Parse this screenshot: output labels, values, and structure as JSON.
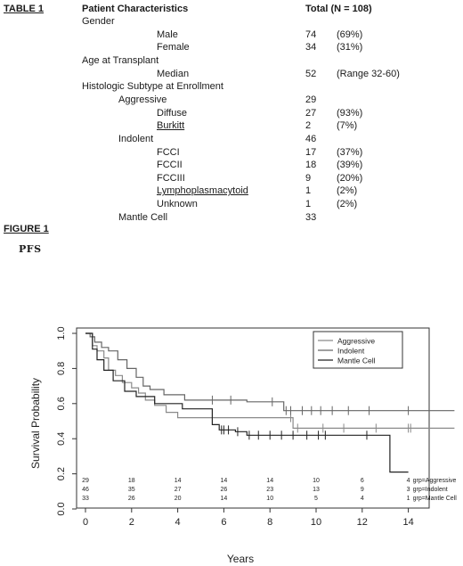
{
  "table": {
    "label": "TABLE 1",
    "header_char": "Patient Characteristics",
    "header_total": "Total (N = 108)",
    "rows": [
      {
        "label": "Gender",
        "indent": 0,
        "value": "",
        "pct": ""
      },
      {
        "label": "Male",
        "indent": 2,
        "value": "74",
        "pct": "(69%)"
      },
      {
        "label": "Female",
        "indent": 2,
        "value": "34",
        "pct": "(31%)"
      },
      {
        "label": "Age at Transplant",
        "indent": 0,
        "value": "",
        "pct": ""
      },
      {
        "label": "Median",
        "indent": 2,
        "value": "52",
        "pct": "(Range  32-60)"
      },
      {
        "label": "Histologic Subtype at Enrollment",
        "indent": 0,
        "value": "",
        "pct": ""
      },
      {
        "label": "Aggressive",
        "indent": 1,
        "value": "29",
        "pct": ""
      },
      {
        "label": "Diffuse",
        "indent": 2,
        "value": "27",
        "pct": "(93%)"
      },
      {
        "label": "Burkitt",
        "indent": 2,
        "value": "2",
        "pct": "(7%)",
        "underline": true
      },
      {
        "label": "Indolent",
        "indent": 1,
        "value": "46",
        "pct": ""
      },
      {
        "label": "FCCI",
        "indent": 2,
        "value": "17",
        "pct": "(37%)"
      },
      {
        "label": "FCCII",
        "indent": 2,
        "value": "18",
        "pct": "(39%)"
      },
      {
        "label": "FCCIII",
        "indent": 2,
        "value": "9",
        "pct": "(20%)"
      },
      {
        "label": "Lymphoplasmacytoid",
        "indent": 2,
        "value": "1",
        "pct": "(2%)",
        "underline": true
      },
      {
        "label": "Unknown",
        "indent": 2,
        "value": "1",
        "pct": "(2%)"
      },
      {
        "label": "Mantle Cell",
        "indent": 1,
        "value": "33",
        "pct": ""
      }
    ]
  },
  "figure": {
    "label": "FIGURE 1",
    "subtitle": "PFS"
  },
  "chart_data": {
    "type": "line",
    "xlabel": "Years",
    "ylabel": "Survival Probability",
    "xlim": [
      0,
      16
    ],
    "ylim": [
      0,
      1
    ],
    "x_ticks": [
      "0",
      "2",
      "4",
      "6",
      "8",
      "10",
      "12",
      "14"
    ],
    "y_ticks": [
      "0.0",
      "0.2",
      "0.4",
      "0.6",
      "0.8",
      "1.0"
    ],
    "legend_position": "top-right",
    "series": [
      {
        "name": "Aggressive",
        "color": "#8a8a8a",
        "x": [
          0,
          0.3,
          0.5,
          0.8,
          1.0,
          1.3,
          1.6,
          2.0,
          2.3,
          2.6,
          3.0,
          3.5,
          4.0,
          9.0,
          16.0
        ],
        "y": [
          1.0,
          0.93,
          0.9,
          0.86,
          0.79,
          0.76,
          0.72,
          0.69,
          0.66,
          0.62,
          0.59,
          0.55,
          0.52,
          0.46,
          0.46
        ],
        "censor_x": [
          8.9,
          9.2,
          10.3,
          11.2,
          12.6,
          14.0,
          14.1
        ]
      },
      {
        "name": "Indolent",
        "color": "#666666",
        "x": [
          0,
          0.2,
          0.4,
          0.7,
          1.0,
          1.4,
          1.8,
          2.2,
          2.5,
          2.8,
          3.4,
          4.3,
          7.0,
          8.6,
          16.0
        ],
        "y": [
          1.0,
          0.98,
          0.95,
          0.92,
          0.9,
          0.85,
          0.8,
          0.75,
          0.7,
          0.68,
          0.65,
          0.62,
          0.61,
          0.56,
          0.56
        ],
        "censor_x": [
          5.5,
          6.3,
          8.1,
          8.7,
          8.9,
          9.4,
          9.8,
          10.2,
          10.7,
          11.4,
          12.3,
          14.0
        ]
      },
      {
        "name": "Mantle Cell",
        "color": "#222222",
        "x": [
          0,
          0.3,
          0.5,
          0.8,
          1.2,
          1.7,
          2.2,
          3.0,
          4.2,
          5.5,
          5.8,
          6.5,
          7.0,
          13.0,
          13.2,
          14.0
        ],
        "y": [
          1.0,
          0.91,
          0.85,
          0.79,
          0.73,
          0.67,
          0.64,
          0.6,
          0.57,
          0.48,
          0.45,
          0.44,
          0.42,
          0.42,
          0.21,
          0.21
        ],
        "censor_x": [
          5.9,
          6.0,
          6.2,
          6.6,
          7.1,
          7.5,
          8.0,
          8.5,
          9.0,
          9.6,
          10.1,
          10.4,
          12.2
        ]
      }
    ],
    "risk_table": {
      "times": [
        "0",
        "2",
        "4",
        "6",
        "8",
        "10",
        "12",
        "14"
      ],
      "rows": [
        {
          "label": "grp=Aggressive",
          "values": [
            "29",
            "18",
            "14",
            "14",
            "14",
            "10",
            "6",
            "4"
          ]
        },
        {
          "label": "grp=Indolent",
          "values": [
            "46",
            "35",
            "27",
            "26",
            "23",
            "13",
            "9",
            "3"
          ]
        },
        {
          "label": "grp=Mantle Cell",
          "values": [
            "33",
            "26",
            "20",
            "14",
            "10",
            "5",
            "4",
            "1"
          ]
        }
      ]
    }
  }
}
